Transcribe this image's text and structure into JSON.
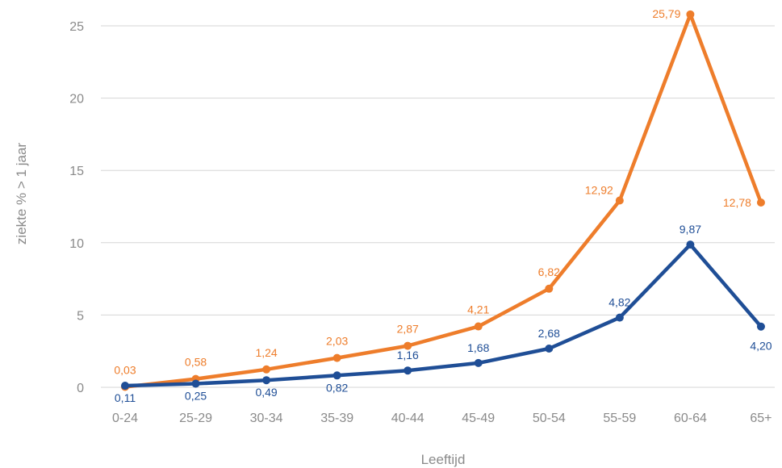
{
  "chart_data": {
    "type": "line",
    "title": "",
    "xlabel": "Leeftijd",
    "ylabel": "ziekte % > 1 jaar",
    "ylim": [
      0,
      25
    ],
    "yticks": [
      0,
      5,
      10,
      15,
      20,
      25
    ],
    "grid": true,
    "legend": "none",
    "categories": [
      "0-24",
      "25-29",
      "30-34",
      "35-39",
      "40-44",
      "45-49",
      "50-54",
      "55-59",
      "60-64",
      "65+"
    ],
    "series": [
      {
        "color": "#ee7d2b",
        "values": [
          0.03,
          0.58,
          1.24,
          2.03,
          2.87,
          4.21,
          6.82,
          12.92,
          25.79,
          12.78
        ],
        "labels": [
          "0,03",
          "0,58",
          "1,24",
          "2,03",
          "2,87",
          "4,21",
          "6,82",
          "12,92",
          "25,79",
          "12,78"
        ]
      },
      {
        "color": "#1f4e96",
        "values": [
          0.11,
          0.25,
          0.49,
          0.82,
          1.16,
          1.68,
          2.68,
          4.82,
          9.87,
          4.2
        ],
        "labels": [
          "0,11",
          "0,25",
          "0,49",
          "0,82",
          "1,16",
          "1,68",
          "2,68",
          "4,82",
          "9,87",
          "4,20"
        ]
      }
    ]
  }
}
